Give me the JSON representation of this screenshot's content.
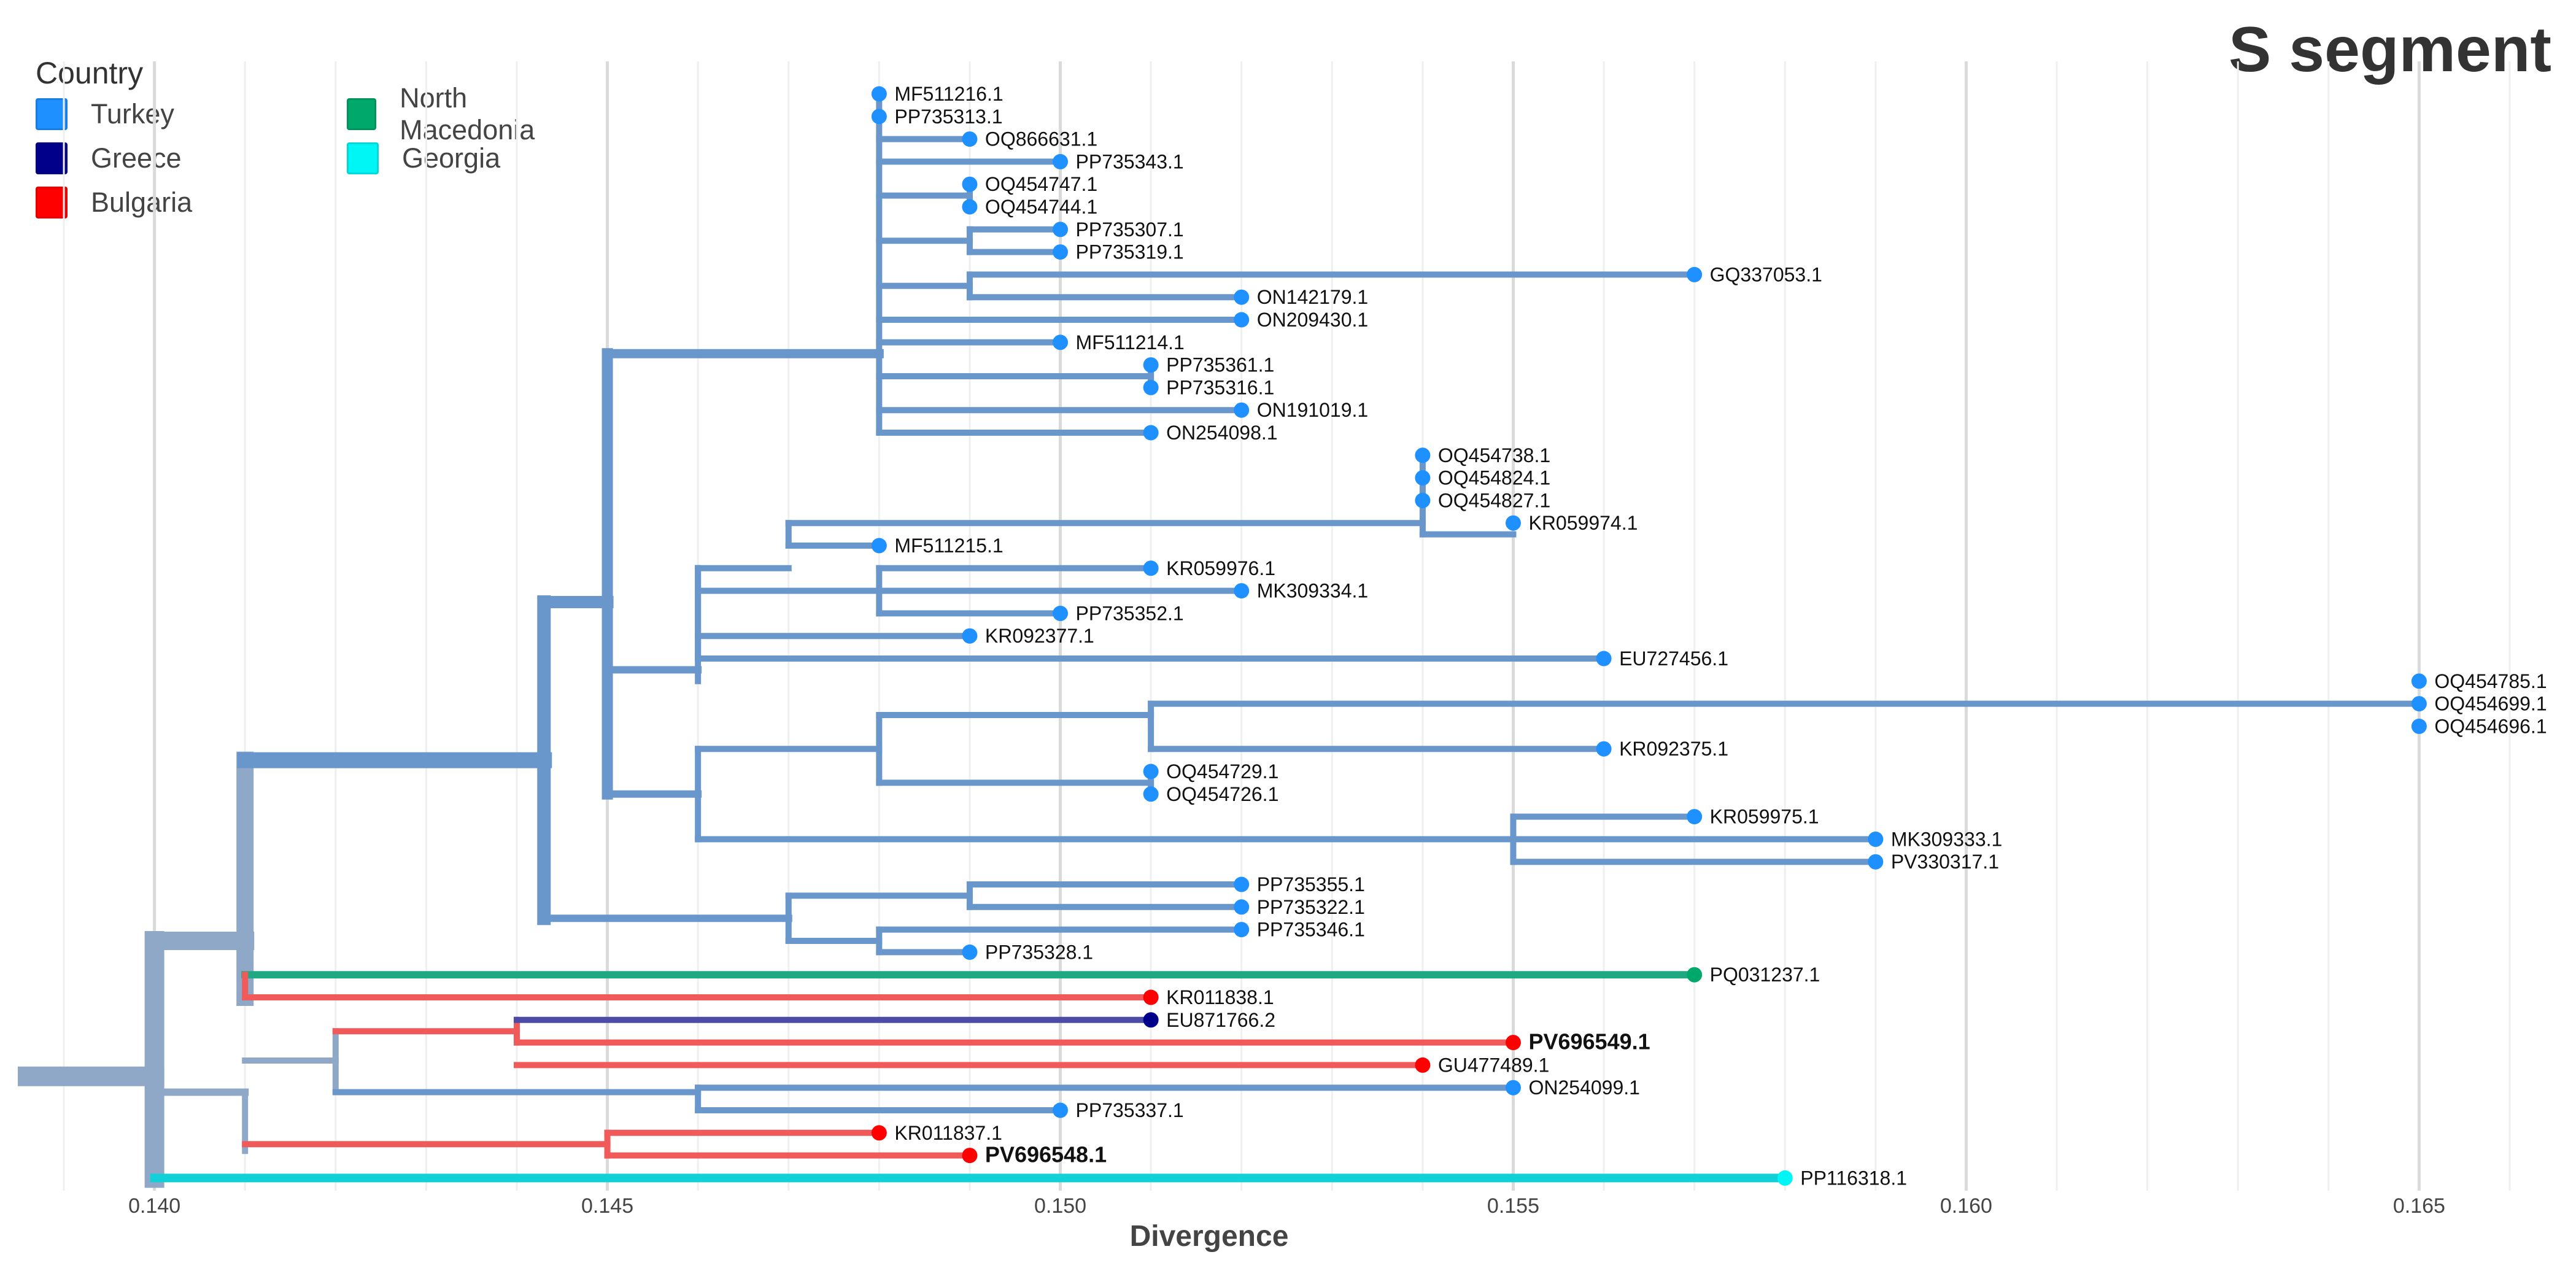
{
  "title": "S segment",
  "legend": {
    "title": "Country",
    "items": [
      {
        "label": "Turkey",
        "color": "#1E90FF"
      },
      {
        "label": "Greece",
        "color": "#00008B"
      },
      {
        "label": "Bulgaria",
        "color": "#FF0000"
      },
      {
        "label": "North Macedonia",
        "color": "#00A86B"
      },
      {
        "label": "Georgia",
        "color": "#00F5F5"
      }
    ]
  },
  "chart_data": {
    "type": "phylogenetic-tree",
    "xlabel": "Divergence",
    "xlim": [
      0.1386,
      0.1664
    ],
    "xticks": [
      0.14,
      0.145,
      0.15,
      0.155,
      0.16,
      0.165
    ],
    "tick_labels": [
      "0.140",
      "0.145",
      "0.150",
      "0.155",
      "0.160",
      "0.165"
    ],
    "branch_colors": {
      "default": "#6A97CB",
      "root": "#8FA8C8",
      "turkey": "#6A97CB",
      "bulgaria": "#F05A5A",
      "greece": "#4C4CA8",
      "macedonia": "#20A882",
      "georgia": "#12D0D8"
    },
    "tips": [
      {
        "label": "MF511216.1",
        "x": 0.148,
        "country": "Turkey"
      },
      {
        "label": "PP735313.1",
        "x": 0.148,
        "country": "Turkey"
      },
      {
        "label": "OQ866631.1",
        "x": 0.149,
        "country": "Turkey"
      },
      {
        "label": "PP735343.1",
        "x": 0.15,
        "country": "Turkey"
      },
      {
        "label": "OQ454747.1",
        "x": 0.149,
        "country": "Turkey"
      },
      {
        "label": "OQ454744.1",
        "x": 0.149,
        "country": "Turkey"
      },
      {
        "label": "PP735307.1",
        "x": 0.15,
        "country": "Turkey"
      },
      {
        "label": "PP735319.1",
        "x": 0.15,
        "country": "Turkey"
      },
      {
        "label": "GQ337053.1",
        "x": 0.157,
        "country": "Turkey"
      },
      {
        "label": "ON142179.1",
        "x": 0.152,
        "country": "Turkey"
      },
      {
        "label": "ON209430.1",
        "x": 0.152,
        "country": "Turkey"
      },
      {
        "label": "MF511214.1",
        "x": 0.15,
        "country": "Turkey"
      },
      {
        "label": "PP735361.1",
        "x": 0.151,
        "country": "Turkey"
      },
      {
        "label": "PP735316.1",
        "x": 0.151,
        "country": "Turkey"
      },
      {
        "label": "ON191019.1",
        "x": 0.152,
        "country": "Turkey"
      },
      {
        "label": "ON254098.1",
        "x": 0.151,
        "country": "Turkey"
      },
      {
        "label": "OQ454738.1",
        "x": 0.154,
        "country": "Turkey"
      },
      {
        "label": "OQ454824.1",
        "x": 0.154,
        "country": "Turkey"
      },
      {
        "label": "OQ454827.1",
        "x": 0.154,
        "country": "Turkey"
      },
      {
        "label": "KR059974.1",
        "x": 0.155,
        "country": "Turkey"
      },
      {
        "label": "MF511215.1",
        "x": 0.148,
        "country": "Turkey"
      },
      {
        "label": "KR059976.1",
        "x": 0.151,
        "country": "Turkey"
      },
      {
        "label": "MK309334.1",
        "x": 0.152,
        "country": "Turkey"
      },
      {
        "label": "PP735352.1",
        "x": 0.15,
        "country": "Turkey"
      },
      {
        "label": "KR092377.1",
        "x": 0.149,
        "country": "Turkey"
      },
      {
        "label": "EU727456.1",
        "x": 0.156,
        "country": "Turkey"
      },
      {
        "label": "OQ454785.1",
        "x": 0.165,
        "country": "Turkey"
      },
      {
        "label": "OQ454699.1",
        "x": 0.165,
        "country": "Turkey"
      },
      {
        "label": "OQ454696.1",
        "x": 0.165,
        "country": "Turkey"
      },
      {
        "label": "KR092375.1",
        "x": 0.156,
        "country": "Turkey"
      },
      {
        "label": "OQ454729.1",
        "x": 0.151,
        "country": "Turkey"
      },
      {
        "label": "OQ454726.1",
        "x": 0.151,
        "country": "Turkey"
      },
      {
        "label": "KR059975.1",
        "x": 0.157,
        "country": "Turkey"
      },
      {
        "label": "MK309333.1",
        "x": 0.159,
        "country": "Turkey"
      },
      {
        "label": "PV330317.1",
        "x": 0.159,
        "country": "Turkey"
      },
      {
        "label": "PP735355.1",
        "x": 0.152,
        "country": "Turkey"
      },
      {
        "label": "PP735322.1",
        "x": 0.152,
        "country": "Turkey"
      },
      {
        "label": "PP735346.1",
        "x": 0.152,
        "country": "Turkey"
      },
      {
        "label": "PP735328.1",
        "x": 0.149,
        "country": "Turkey"
      },
      {
        "label": "PQ031237.1",
        "x": 0.157,
        "country": "North Macedonia"
      },
      {
        "label": "KR011838.1",
        "x": 0.151,
        "country": "Bulgaria"
      },
      {
        "label": "EU871766.2",
        "x": 0.151,
        "country": "Greece"
      },
      {
        "label": "PV696549.1",
        "x": 0.155,
        "country": "Bulgaria",
        "bold": true
      },
      {
        "label": "GU477489.1",
        "x": 0.154,
        "country": "Bulgaria"
      },
      {
        "label": "ON254099.1",
        "x": 0.155,
        "country": "Turkey"
      },
      {
        "label": "PP735337.1",
        "x": 0.15,
        "country": "Turkey"
      },
      {
        "label": "KR011837.1",
        "x": 0.148,
        "country": "Bulgaria"
      },
      {
        "label": "PV696548.1",
        "x": 0.149,
        "country": "Bulgaria",
        "bold": true
      },
      {
        "label": "PP116318.1",
        "x": 0.158,
        "country": "Georgia"
      }
    ],
    "branches": [
      {
        "x0": 0.1386,
        "x1": 0.14,
        "r0": 43.5,
        "r1": 43.5,
        "c": "root",
        "w": 32
      },
      {
        "x0": 0.14,
        "x1": 0.14,
        "r0": 37.5,
        "r1": 48,
        "c": "root",
        "w": 32
      },
      {
        "x0": 0.14,
        "x1": 0.141,
        "r0": 37.5,
        "r1": 37.5,
        "c": "root",
        "w": 30
      },
      {
        "x0": 0.141,
        "x1": 0.141,
        "r0": 29.5,
        "r1": 40,
        "c": "root",
        "w": 28
      },
      {
        "x0": 0.141,
        "x1": 0.1443,
        "r0": 29.5,
        "r1": 29.5,
        "c": "turkey",
        "w": 26
      },
      {
        "x0": 0.1443,
        "x1": 0.1443,
        "r0": 22.5,
        "r1": 36.5,
        "c": "turkey",
        "w": 22
      },
      {
        "x0": 0.1443,
        "x1": 0.145,
        "r0": 22.5,
        "r1": 22.5,
        "c": "turkey",
        "w": 20
      },
      {
        "x0": 0.145,
        "x1": 0.145,
        "r0": 11.5,
        "r1": 31,
        "c": "turkey",
        "w": 18
      },
      {
        "x0": 0.145,
        "x1": 0.148,
        "r0": 11.5,
        "r1": 11.5,
        "c": "turkey",
        "w": 15
      },
      {
        "x0": 0.148,
        "x1": 0.148,
        "r0": 0,
        "r1": 15,
        "c": "turkey",
        "w": 10
      },
      {
        "x0": 0.148,
        "x1": 0.149,
        "r0": 2,
        "r1": 2,
        "c": "turkey",
        "w": 10
      },
      {
        "x0": 0.148,
        "x1": 0.15,
        "r0": 3,
        "r1": 3,
        "c": "turkey",
        "w": 10
      },
      {
        "x0": 0.148,
        "x1": 0.149,
        "r0": 4.5,
        "r1": 4.5,
        "c": "turkey",
        "w": 10
      },
      {
        "x0": 0.149,
        "x1": 0.149,
        "r0": 4,
        "r1": 5,
        "c": "turkey",
        "w": 10
      },
      {
        "x0": 0.148,
        "x1": 0.149,
        "r0": 6.5,
        "r1": 6.5,
        "c": "turkey",
        "w": 10
      },
      {
        "x0": 0.149,
        "x1": 0.149,
        "r0": 6,
        "r1": 7,
        "c": "turkey",
        "w": 10
      },
      {
        "x0": 0.149,
        "x1": 0.15,
        "r0": 6,
        "r1": 6,
        "c": "turkey",
        "w": 10
      },
      {
        "x0": 0.149,
        "x1": 0.15,
        "r0": 7,
        "r1": 7,
        "c": "turkey",
        "w": 10
      },
      {
        "x0": 0.148,
        "x1": 0.149,
        "r0": 8.5,
        "r1": 8.5,
        "c": "turkey",
        "w": 10
      },
      {
        "x0": 0.149,
        "x1": 0.149,
        "r0": 8,
        "r1": 9,
        "c": "turkey",
        "w": 10
      },
      {
        "x0": 0.149,
        "x1": 0.157,
        "r0": 8,
        "r1": 8,
        "c": "turkey",
        "w": 10
      },
      {
        "x0": 0.149,
        "x1": 0.152,
        "r0": 9,
        "r1": 9,
        "c": "turkey",
        "w": 10
      },
      {
        "x0": 0.148,
        "x1": 0.152,
        "r0": 10,
        "r1": 10,
        "c": "turkey",
        "w": 10
      },
      {
        "x0": 0.148,
        "x1": 0.15,
        "r0": 11,
        "r1": 11,
        "c": "turkey",
        "w": 10
      },
      {
        "x0": 0.148,
        "x1": 0.151,
        "r0": 12.5,
        "r1": 12.5,
        "c": "turkey",
        "w": 10
      },
      {
        "x0": 0.151,
        "x1": 0.151,
        "r0": 12,
        "r1": 13,
        "c": "turkey",
        "w": 10
      },
      {
        "x0": 0.148,
        "x1": 0.152,
        "r0": 14,
        "r1": 14,
        "c": "turkey",
        "w": 10
      },
      {
        "x0": 0.148,
        "x1": 0.151,
        "r0": 15,
        "r1": 15,
        "c": "turkey",
        "w": 10
      },
      {
        "x0": 0.145,
        "x1": 0.146,
        "r0": 25.5,
        "r1": 25.5,
        "c": "turkey",
        "w": 12
      },
      {
        "x0": 0.146,
        "x1": 0.146,
        "r0": 21,
        "r1": 26,
        "c": "turkey",
        "w": 10
      },
      {
        "x0": 0.146,
        "x1": 0.147,
        "r0": 21,
        "r1": 21,
        "c": "turkey",
        "w": 10
      },
      {
        "x0": 0.147,
        "x1": 0.147,
        "r0": 19,
        "r1": 20,
        "c": "turkey",
        "w": 10
      },
      {
        "x0": 0.147,
        "x1": 0.154,
        "r0": 19,
        "r1": 19,
        "c": "turkey",
        "w": 10
      },
      {
        "x0": 0.147,
        "x1": 0.148,
        "r0": 20,
        "r1": 20,
        "c": "turkey",
        "w": 10
      },
      {
        "x0": 0.154,
        "x1": 0.154,
        "r0": 16,
        "r1": 19.5,
        "c": "turkey",
        "w": 10
      },
      {
        "x0": 0.154,
        "x1": 0.155,
        "r0": 19.5,
        "r1": 19.5,
        "c": "turkey",
        "w": 10
      },
      {
        "x0": 0.146,
        "x1": 0.146,
        "r0": 21,
        "r1": 25,
        "c": "turkey",
        "w": 10
      },
      {
        "x0": 0.146,
        "x1": 0.148,
        "r0": 22,
        "r1": 22,
        "c": "turkey",
        "w": 10
      },
      {
        "x0": 0.148,
        "x1": 0.148,
        "r0": 21,
        "r1": 23,
        "c": "turkey",
        "w": 10
      },
      {
        "x0": 0.148,
        "x1": 0.151,
        "r0": 21,
        "r1": 21,
        "c": "turkey",
        "w": 10
      },
      {
        "x0": 0.148,
        "x1": 0.152,
        "r0": 22,
        "r1": 22,
        "c": "turkey",
        "w": 10
      },
      {
        "x0": 0.148,
        "x1": 0.15,
        "r0": 23,
        "r1": 23,
        "c": "turkey",
        "w": 10
      },
      {
        "x0": 0.146,
        "x1": 0.149,
        "r0": 24,
        "r1": 24,
        "c": "turkey",
        "w": 10
      },
      {
        "x0": 0.146,
        "x1": 0.156,
        "r0": 25,
        "r1": 25,
        "c": "turkey",
        "w": 10
      },
      {
        "x0": 0.145,
        "x1": 0.146,
        "r0": 31,
        "r1": 31,
        "c": "turkey",
        "w": 12
      },
      {
        "x0": 0.146,
        "x1": 0.146,
        "r0": 29,
        "r1": 33,
        "c": "turkey",
        "w": 10
      },
      {
        "x0": 0.146,
        "x1": 0.148,
        "r0": 29,
        "r1": 29,
        "c": "turkey",
        "w": 10
      },
      {
        "x0": 0.148,
        "x1": 0.148,
        "r0": 27.5,
        "r1": 30.5,
        "c": "turkey",
        "w": 10
      },
      {
        "x0": 0.148,
        "x1": 0.151,
        "r0": 27.5,
        "r1": 27.5,
        "c": "turkey",
        "w": 10
      },
      {
        "x0": 0.151,
        "x1": 0.151,
        "r0": 27,
        "r1": 29,
        "c": "turkey",
        "w": 10
      },
      {
        "x0": 0.151,
        "x1": 0.165,
        "r0": 27,
        "r1": 27,
        "c": "turkey",
        "w": 10
      },
      {
        "x0": 0.151,
        "x1": 0.156,
        "r0": 29,
        "r1": 29,
        "c": "turkey",
        "w": 10
      },
      {
        "x0": 0.148,
        "x1": 0.151,
        "r0": 30.5,
        "r1": 30.5,
        "c": "turkey",
        "w": 10
      },
      {
        "x0": 0.151,
        "x1": 0.151,
        "r0": 30,
        "r1": 31,
        "c": "turkey",
        "w": 10
      },
      {
        "x0": 0.146,
        "x1": 0.155,
        "r0": 33,
        "r1": 33,
        "c": "turkey",
        "w": 10
      },
      {
        "x0": 0.155,
        "x1": 0.155,
        "r0": 32,
        "r1": 34,
        "c": "turkey",
        "w": 10
      },
      {
        "x0": 0.155,
        "x1": 0.157,
        "r0": 32,
        "r1": 32,
        "c": "turkey",
        "w": 10
      },
      {
        "x0": 0.155,
        "x1": 0.159,
        "r0": 33,
        "r1": 33,
        "c": "turkey",
        "w": 10
      },
      {
        "x0": 0.155,
        "x1": 0.159,
        "r0": 34,
        "r1": 34,
        "c": "turkey",
        "w": 10
      },
      {
        "x0": 0.1443,
        "x1": 0.147,
        "r0": 36.5,
        "r1": 36.5,
        "c": "turkey",
        "w": 12
      },
      {
        "x0": 0.147,
        "x1": 0.147,
        "r0": 35.5,
        "r1": 37.5,
        "c": "turkey",
        "w": 10
      },
      {
        "x0": 0.147,
        "x1": 0.149,
        "r0": 35.5,
        "r1": 35.5,
        "c": "turkey",
        "w": 10
      },
      {
        "x0": 0.149,
        "x1": 0.149,
        "r0": 35,
        "r1": 36,
        "c": "turkey",
        "w": 10
      },
      {
        "x0": 0.149,
        "x1": 0.152,
        "r0": 35,
        "r1": 35,
        "c": "turkey",
        "w": 10
      },
      {
        "x0": 0.149,
        "x1": 0.152,
        "r0": 36,
        "r1": 36,
        "c": "turkey",
        "w": 10
      },
      {
        "x0": 0.147,
        "x1": 0.148,
        "r0": 37.5,
        "r1": 37.5,
        "c": "turkey",
        "w": 10
      },
      {
        "x0": 0.148,
        "x1": 0.148,
        "r0": 37,
        "r1": 38,
        "c": "turkey",
        "w": 10
      },
      {
        "x0": 0.148,
        "x1": 0.152,
        "r0": 37,
        "r1": 37,
        "c": "turkey",
        "w": 10
      },
      {
        "x0": 0.148,
        "x1": 0.149,
        "r0": 38,
        "r1": 38,
        "c": "turkey",
        "w": 10
      },
      {
        "x0": 0.141,
        "x1": 0.157,
        "r0": 39,
        "r1": 39,
        "c": "macedonia",
        "w": 12
      },
      {
        "x0": 0.141,
        "x1": 0.141,
        "r0": 39,
        "r1": 40,
        "c": "bulgaria",
        "w": 10
      },
      {
        "x0": 0.141,
        "x1": 0.151,
        "r0": 40,
        "r1": 40,
        "c": "bulgaria",
        "w": 10
      },
      {
        "x0": 0.14,
        "x1": 0.141,
        "r0": 44.2,
        "r1": 44.2,
        "c": "root",
        "w": 12
      },
      {
        "x0": 0.141,
        "x1": 0.141,
        "r0": 44.2,
        "r1": 46.8,
        "c": "root",
        "w": 10
      },
      {
        "x0": 0.141,
        "x1": 0.142,
        "r0": 42.8,
        "r1": 42.8,
        "c": "root",
        "w": 10
      },
      {
        "x0": 0.142,
        "x1": 0.142,
        "r0": 41.5,
        "r1": 44.2,
        "c": "root",
        "w": 10
      },
      {
        "x0": 0.142,
        "x1": 0.144,
        "r0": 41.5,
        "r1": 41.5,
        "c": "bulgaria",
        "w": 10
      },
      {
        "x0": 0.144,
        "x1": 0.144,
        "r0": 41,
        "r1": 42,
        "c": "bulgaria",
        "w": 10
      },
      {
        "x0": 0.144,
        "x1": 0.151,
        "r0": 41,
        "r1": 41,
        "c": "greece",
        "w": 10
      },
      {
        "x0": 0.144,
        "x1": 0.155,
        "r0": 42,
        "r1": 42,
        "c": "bulgaria",
        "w": 10
      },
      {
        "x0": 0.144,
        "x1": 0.154,
        "r0": 43,
        "r1": 43,
        "c": "bulgaria",
        "w": 10
      },
      {
        "x0": 0.142,
        "x1": 0.146,
        "r0": 44.2,
        "r1": 44.2,
        "c": "turkey",
        "w": 10
      },
      {
        "x0": 0.146,
        "x1": 0.146,
        "r0": 44,
        "r1": 45,
        "c": "turkey",
        "w": 10
      },
      {
        "x0": 0.146,
        "x1": 0.155,
        "r0": 44,
        "r1": 44,
        "c": "turkey",
        "w": 10
      },
      {
        "x0": 0.146,
        "x1": 0.15,
        "r0": 45,
        "r1": 45,
        "c": "turkey",
        "w": 10
      },
      {
        "x0": 0.141,
        "x1": 0.145,
        "r0": 46.5,
        "r1": 46.5,
        "c": "bulgaria",
        "w": 10
      },
      {
        "x0": 0.145,
        "x1": 0.145,
        "r0": 46,
        "r1": 47,
        "c": "bulgaria",
        "w": 10
      },
      {
        "x0": 0.145,
        "x1": 0.148,
        "r0": 46,
        "r1": 46,
        "c": "bulgaria",
        "w": 10
      },
      {
        "x0": 0.145,
        "x1": 0.149,
        "r0": 47,
        "r1": 47,
        "c": "bulgaria",
        "w": 10
      },
      {
        "x0": 0.14,
        "x1": 0.158,
        "r0": 48,
        "r1": 48,
        "c": "georgia",
        "w": 14
      }
    ]
  }
}
